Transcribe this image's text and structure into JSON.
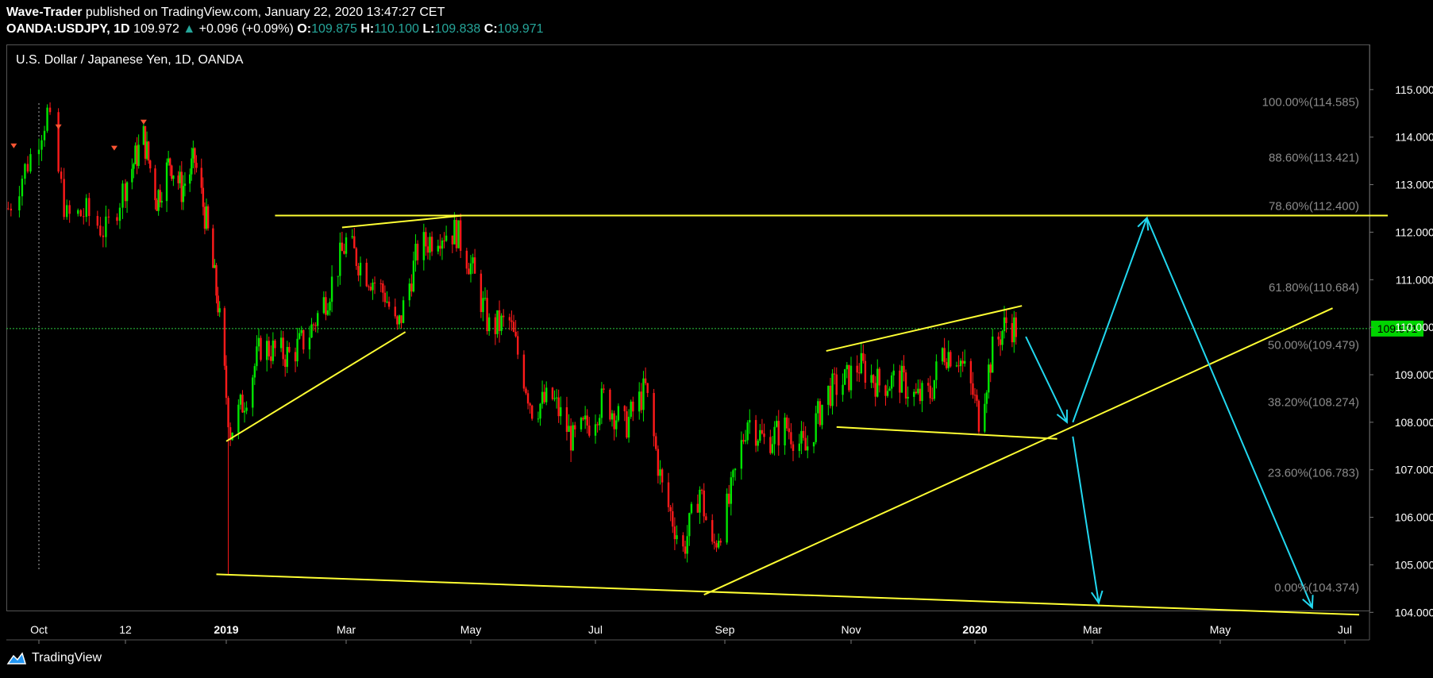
{
  "header": {
    "author": "Wave-Trader",
    "published": "published on TradingView.com, January 22, 2020 13:47:27 CET",
    "symbol": "OANDA:USDJPY, 1D",
    "last": "109.972",
    "change": "+0.096 (+0.09%)",
    "o_label": "O:",
    "o": "109.875",
    "h_label": "H:",
    "h": "110.100",
    "l_label": "L:",
    "l": "109.838",
    "c_label": "C:",
    "c": "109.971"
  },
  "brand": "TradingView",
  "colors": {
    "up": "#00e600",
    "down": "#ff1a1a",
    "trend": "#ffff33",
    "arrow": "#22d8f0",
    "price_line": "#2ecc40"
  },
  "chart_data": {
    "type": "candlestick",
    "title": "U.S. Dollar / Japanese Yen, 1D, OANDA",
    "current_price": "109.971",
    "ylim": [
      103.42,
      115.95
    ],
    "y_ticks": [
      "115.000",
      "114.000",
      "113.000",
      "112.000",
      "111.000",
      "110.000",
      "109.000",
      "108.000",
      "107.000",
      "106.000",
      "105.000",
      "104.000"
    ],
    "x_ticks": [
      {
        "label": "Oct",
        "date": "2018-10-01",
        "bold": false
      },
      {
        "label": "12",
        "date": "2018-11-01",
        "bold": false
      },
      {
        "label": "2019",
        "date": "2019-01-01",
        "bold": true
      },
      {
        "label": "Mar",
        "date": "2019-03-01",
        "bold": false
      },
      {
        "label": "May",
        "date": "2019-05-01",
        "bold": false
      },
      {
        "label": "Jul",
        "date": "2019-07-01",
        "bold": false
      },
      {
        "label": "Sep",
        "date": "2019-09-01",
        "bold": false
      },
      {
        "label": "Nov",
        "date": "2019-11-01",
        "bold": false
      },
      {
        "label": "2020",
        "date": "2020-01-01",
        "bold": true
      },
      {
        "label": "Mar",
        "date": "2020-03-01",
        "bold": false
      },
      {
        "label": "May",
        "date": "2020-05-01",
        "bold": false
      },
      {
        "label": "Jul",
        "date": "2020-07-01",
        "bold": false
      }
    ],
    "path": [
      [
        "2018-09-20",
        112.5
      ],
      [
        "2018-09-28",
        113.6
      ],
      [
        "2018-10-04",
        114.5
      ],
      [
        "2018-10-11",
        112.3
      ],
      [
        "2018-10-18",
        112.4
      ],
      [
        "2018-10-25",
        112.0
      ],
      [
        "2018-11-01",
        113.0
      ],
      [
        "2018-11-12",
        114.0
      ],
      [
        "2018-11-20",
        112.7
      ],
      [
        "2018-11-28",
        113.5
      ],
      [
        "2018-12-05",
        112.9
      ],
      [
        "2018-12-13",
        113.5
      ],
      [
        "2018-12-20",
        112.2
      ],
      [
        "2018-12-27",
        110.5
      ],
      [
        "2019-01-03",
        107.8
      ],
      [
        "2019-01-10",
        108.5
      ],
      [
        "2019-01-18",
        109.6
      ],
      [
        "2019-01-25",
        109.5
      ],
      [
        "2019-02-01",
        109.4
      ],
      [
        "2019-02-10",
        109.8
      ],
      [
        "2019-02-20",
        110.7
      ],
      [
        "2019-03-01",
        111.8
      ],
      [
        "2019-03-10",
        111.2
      ],
      [
        "2019-03-20",
        110.7
      ],
      [
        "2019-03-26",
        109.9
      ],
      [
        "2019-04-05",
        111.6
      ],
      [
        "2019-04-15",
        112.0
      ],
      [
        "2019-04-24",
        112.0
      ],
      [
        "2019-05-01",
        111.3
      ],
      [
        "2019-05-10",
        110.0
      ],
      [
        "2019-05-20",
        110.1
      ],
      [
        "2019-05-31",
        108.3
      ],
      [
        "2019-06-10",
        108.5
      ],
      [
        "2019-06-20",
        107.6
      ],
      [
        "2019-06-28",
        108.0
      ],
      [
        "2019-07-05",
        108.5
      ],
      [
        "2019-07-15",
        107.9
      ],
      [
        "2019-07-25",
        108.7
      ],
      [
        "2019-08-02",
        106.6
      ],
      [
        "2019-08-12",
        105.3
      ],
      [
        "2019-08-20",
        106.6
      ],
      [
        "2019-08-26",
        105.3
      ],
      [
        "2019-09-03",
        106.3
      ],
      [
        "2019-09-12",
        108.1
      ],
      [
        "2019-09-20",
        107.6
      ],
      [
        "2019-10-01",
        107.9
      ],
      [
        "2019-10-10",
        107.4
      ],
      [
        "2019-10-20",
        108.6
      ],
      [
        "2019-10-30",
        108.9
      ],
      [
        "2019-11-05",
        109.2
      ],
      [
        "2019-11-15",
        108.8
      ],
      [
        "2019-11-25",
        108.9
      ],
      [
        "2019-12-03",
        108.5
      ],
      [
        "2019-12-10",
        108.6
      ],
      [
        "2019-12-16",
        109.5
      ],
      [
        "2019-12-24",
        109.4
      ],
      [
        "2019-12-31",
        108.6
      ],
      [
        "2020-01-03",
        108.1
      ],
      [
        "2020-01-10",
        109.5
      ],
      [
        "2020-01-17",
        110.1
      ],
      [
        "2020-01-22",
        109.97
      ]
    ],
    "fib_levels": [
      {
        "label": "100.00%(114.585)",
        "price": 114.585
      },
      {
        "label": "88.60%(113.421)",
        "price": 113.421
      },
      {
        "label": "78.60%(112.400)",
        "price": 112.4
      },
      {
        "label": "61.80%(110.684)",
        "price": 110.684
      },
      {
        "label": "50.00%(109.479)",
        "price": 109.479
      },
      {
        "label": "38.20%(108.274)",
        "price": 108.274
      },
      {
        "label": "23.60%(106.783)",
        "price": 106.783
      },
      {
        "label": "0.00%(104.374)",
        "price": 104.374
      }
    ],
    "trendlines": [
      {
        "from": [
          "2019-01-25",
          112.35
        ],
        "to": [
          "2020-07-22",
          112.35
        ]
      },
      {
        "from": [
          "2019-02-27",
          112.1
        ],
        "to": [
          "2019-04-27",
          112.35
        ]
      },
      {
        "from": [
          "2019-01-01",
          107.6
        ],
        "to": [
          "2019-03-30",
          109.9
        ]
      },
      {
        "from": [
          "2019-10-20",
          109.5
        ],
        "to": [
          "2020-01-25",
          110.45
        ]
      },
      {
        "from": [
          "2019-10-25",
          107.9
        ],
        "to": [
          "2020-02-12",
          107.65
        ]
      },
      {
        "from": [
          "2019-08-22",
          104.37
        ],
        "to": [
          "2020-06-25",
          110.4
        ]
      },
      {
        "from": [
          "2018-12-26",
          104.8
        ],
        "to": [
          "2020-07-08",
          103.95
        ]
      }
    ],
    "arrows": [
      {
        "from": [
          "2020-01-27",
          109.8
        ],
        "to": [
          "2020-02-17",
          108.0
        ]
      },
      {
        "from": [
          "2020-02-20",
          108.0
        ],
        "to": [
          "2020-03-27",
          112.3
        ]
      },
      {
        "from": [
          "2020-03-27",
          112.3
        ],
        "to": [
          "2020-06-15",
          104.1
        ]
      },
      {
        "from": [
          "2020-02-20",
          107.7
        ],
        "to": [
          "2020-03-04",
          104.2
        ]
      }
    ]
  }
}
